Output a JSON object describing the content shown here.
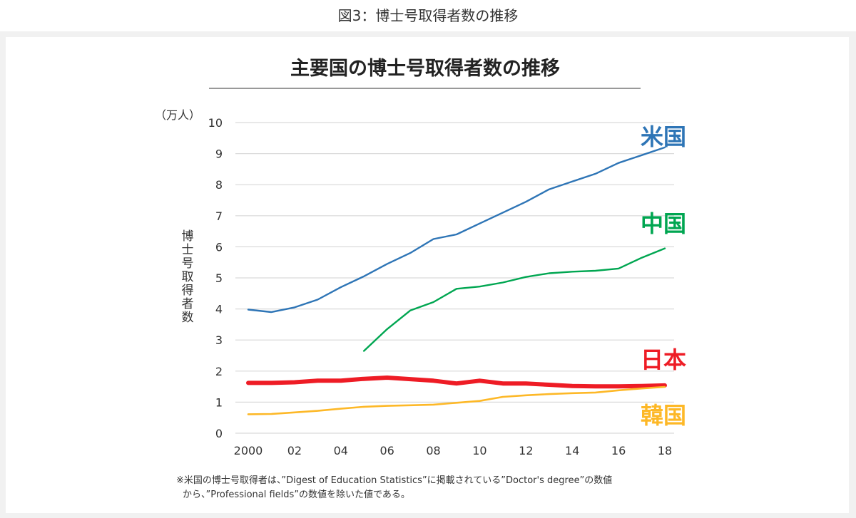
{
  "caption": "図3：博士号取得者数の推移",
  "chart_data": {
    "type": "line",
    "title": "主要国の博士号取得者数の推移",
    "unit_label": "（万人）",
    "ylabel": "博士号取得者数",
    "ylim": [
      0,
      10
    ],
    "y_ticks": [
      "0",
      "1",
      "2",
      "3",
      "4",
      "5",
      "6",
      "7",
      "8",
      "9",
      "10"
    ],
    "x_ticks": [
      {
        "year": 2000,
        "label": "2000"
      },
      {
        "year": 2002,
        "label": "02"
      },
      {
        "year": 2004,
        "label": "04"
      },
      {
        "year": 2006,
        "label": "06"
      },
      {
        "year": 2008,
        "label": "08"
      },
      {
        "year": 2010,
        "label": "10"
      },
      {
        "year": 2012,
        "label": "12"
      },
      {
        "year": 2014,
        "label": "14"
      },
      {
        "year": 2016,
        "label": "16"
      },
      {
        "year": 2018,
        "label": "18"
      }
    ],
    "xlim": [
      2000,
      2018
    ],
    "series": [
      {
        "name": "米国",
        "key": "us",
        "color": "#2E75B6",
        "x": [
          2000,
          2001,
          2002,
          2003,
          2004,
          2005,
          2006,
          2007,
          2008,
          2009,
          2010,
          2011,
          2012,
          2013,
          2014,
          2015,
          2016,
          2017,
          2018
        ],
        "values": [
          3.98,
          3.9,
          4.05,
          4.3,
          4.7,
          5.05,
          5.45,
          5.8,
          6.25,
          6.4,
          6.75,
          7.1,
          7.45,
          7.85,
          8.1,
          8.35,
          8.7,
          8.95,
          9.2
        ]
      },
      {
        "name": "中国",
        "key": "cn",
        "color": "#00A651",
        "x": [
          2005,
          2006,
          2007,
          2008,
          2009,
          2010,
          2011,
          2012,
          2013,
          2014,
          2015,
          2016,
          2017,
          2018
        ],
        "values": [
          2.65,
          3.35,
          3.95,
          4.22,
          4.65,
          4.72,
          4.85,
          5.03,
          5.15,
          5.2,
          5.23,
          5.3,
          5.65,
          5.95
        ]
      },
      {
        "name": "日本",
        "key": "jp",
        "color": "#EE1C25",
        "x": [
          2000,
          2001,
          2002,
          2003,
          2004,
          2005,
          2006,
          2007,
          2008,
          2009,
          2010,
          2011,
          2012,
          2013,
          2014,
          2015,
          2016,
          2017,
          2018
        ],
        "values": [
          1.62,
          1.62,
          1.64,
          1.69,
          1.69,
          1.75,
          1.79,
          1.74,
          1.69,
          1.6,
          1.69,
          1.6,
          1.6,
          1.56,
          1.52,
          1.51,
          1.51,
          1.52,
          1.54
        ]
      },
      {
        "name": "韓国",
        "key": "kr",
        "color": "#FDB827",
        "x": [
          2000,
          2001,
          2002,
          2003,
          2004,
          2005,
          2006,
          2007,
          2008,
          2009,
          2010,
          2011,
          2012,
          2013,
          2014,
          2015,
          2016,
          2017,
          2018
        ],
        "values": [
          0.61,
          0.62,
          0.67,
          0.72,
          0.79,
          0.85,
          0.88,
          0.9,
          0.92,
          0.98,
          1.04,
          1.17,
          1.22,
          1.26,
          1.29,
          1.31,
          1.38,
          1.44,
          1.49
        ]
      }
    ],
    "footnote_lines": [
      "※米国の博士号取得者は、”Digest of Education Statistics”に掲載されている”Doctor's degree”の数値",
      "から、”Professional fields”の数値を除いた値である。"
    ]
  }
}
